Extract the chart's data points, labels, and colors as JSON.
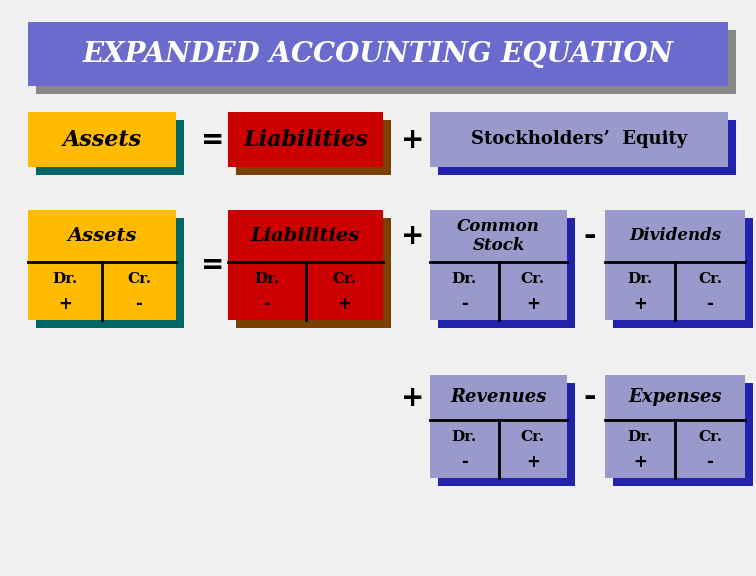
{
  "title": "EXPANDED ACCOUNTING EQUATION",
  "title_bg": "#6B6BCE",
  "title_shadow": "#888888",
  "title_color": "#ffffff",
  "bg_color": "#f0f0f0",
  "yellow": "#FFBB00",
  "teal": "#006666",
  "red": "#CC0000",
  "brown": "#7A4000",
  "blue_light": "#9999CC",
  "blue_dark": "#2222AA",
  "row1": {
    "assets_label": "Assets",
    "liabilities_label": "Liabilities",
    "stockholders_label": "Stockholders’  Equity"
  },
  "row2": {
    "assets_label": "Assets",
    "liabilities_label": "Liabilities",
    "common_stock_label": "Common\nStock",
    "dividends_label": "Dividends"
  },
  "row3": {
    "revenues_label": "Revenues",
    "expenses_label": "Expenses"
  }
}
